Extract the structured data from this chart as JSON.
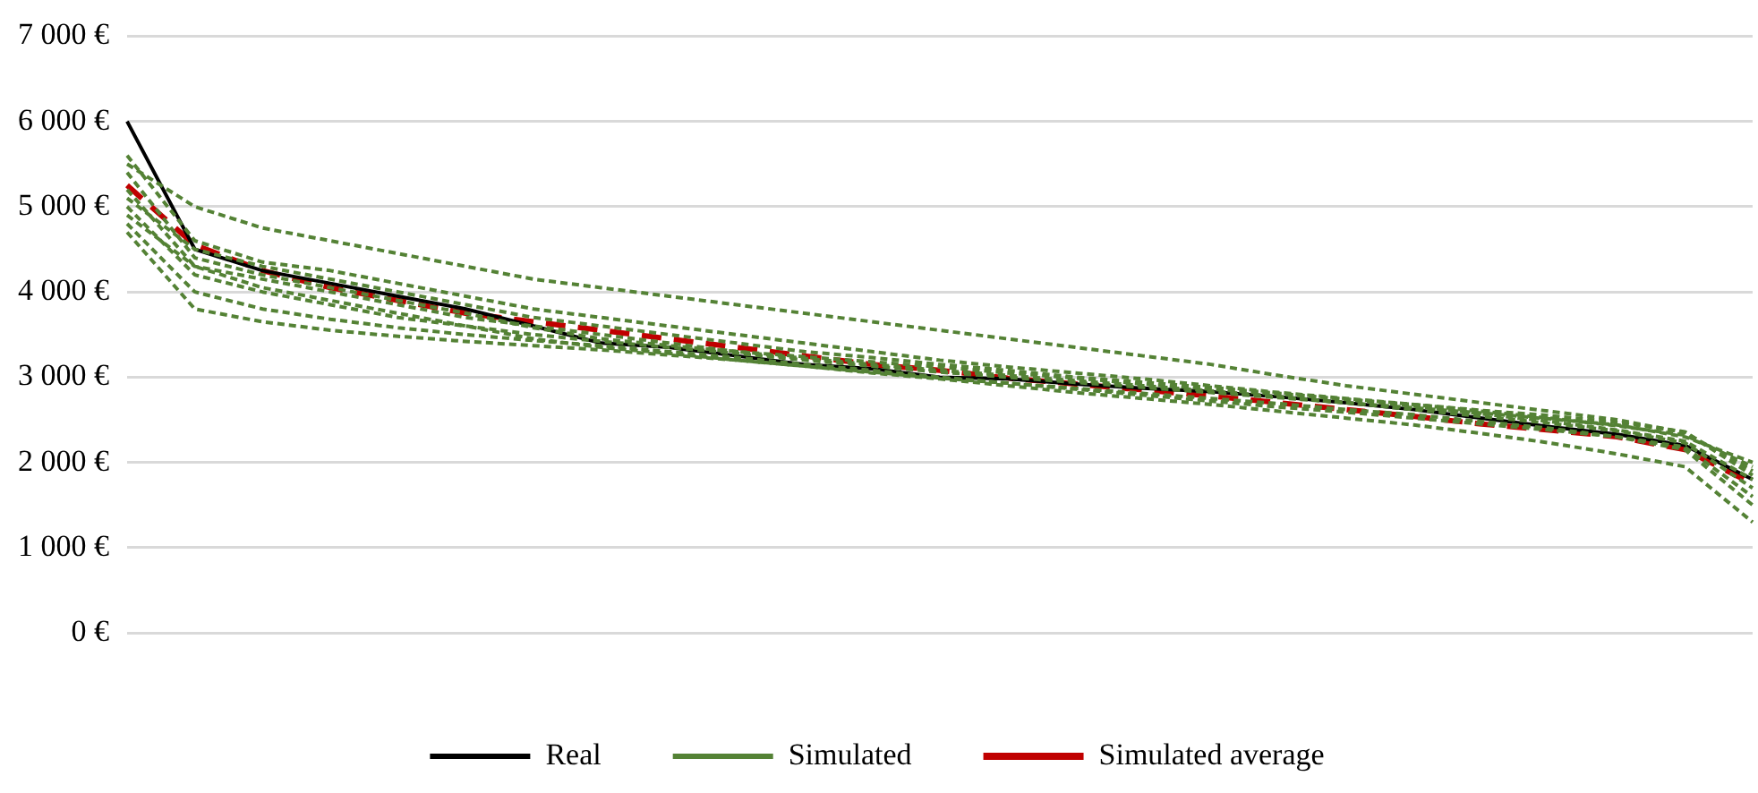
{
  "chart_data": {
    "type": "line",
    "categories": [
      null,
      null,
      null,
      null,
      null,
      null,
      null,
      null,
      null,
      null,
      null,
      null,
      null,
      null,
      null,
      null,
      null,
      null,
      null,
      null,
      null,
      null,
      null,
      null,
      null
    ],
    "series": [
      {
        "name": "Simulated",
        "color": "#548235",
        "line_style": "dotted",
        "values": [
          5500,
          5000,
          4750,
          4600,
          4450,
          4300,
          4150,
          4050,
          3950,
          3850,
          3750,
          3650,
          3550,
          3450,
          3350,
          3250,
          3150,
          3020,
          2900,
          2800,
          2700,
          2600,
          2500,
          2350,
          1900
        ]
      },
      {
        "color": "#548235",
        "line_style": "dotted",
        "values": [
          5600,
          4600,
          4350,
          4250,
          4100,
          3950,
          3800,
          3700,
          3600,
          3500,
          3400,
          3300,
          3200,
          3120,
          3050,
          2980,
          2900,
          2820,
          2750,
          2680,
          2600,
          2520,
          2430,
          2320,
          1950
        ]
      },
      {
        "color": "#548235",
        "line_style": "dotted",
        "values": [
          5100,
          4500,
          4300,
          4150,
          4000,
          3850,
          3700,
          3600,
          3500,
          3400,
          3300,
          3230,
          3150,
          3080,
          3000,
          2940,
          2880,
          2810,
          2740,
          2660,
          2570,
          2480,
          2380,
          2250,
          1800
        ]
      },
      {
        "color": "#548235",
        "line_style": "dotted",
        "values": [
          4900,
          4300,
          4150,
          4000,
          3850,
          3700,
          3600,
          3500,
          3400,
          3300,
          3220,
          3150,
          3080,
          3020,
          2960,
          2900,
          2840,
          2770,
          2700,
          2620,
          2540,
          2460,
          2370,
          2230,
          1700
        ]
      },
      {
        "color": "#548235",
        "line_style": "dotted",
        "values": [
          5000,
          4200,
          4000,
          3850,
          3700,
          3600,
          3500,
          3420,
          3350,
          3280,
          3200,
          3130,
          3060,
          3000,
          2940,
          2880,
          2820,
          2760,
          2700,
          2640,
          2580,
          2510,
          2440,
          2300,
          2000
        ]
      },
      {
        "color": "#548235",
        "line_style": "dotted",
        "values": [
          4800,
          4000,
          3800,
          3680,
          3580,
          3500,
          3430,
          3370,
          3300,
          3230,
          3150,
          3080,
          3000,
          2930,
          2860,
          2790,
          2720,
          2650,
          2590,
          2520,
          2450,
          2380,
          2300,
          2150,
          1500
        ]
      },
      {
        "color": "#548235",
        "line_style": "dotted",
        "values": [
          4700,
          3800,
          3650,
          3550,
          3480,
          3420,
          3370,
          3320,
          3260,
          3200,
          3130,
          3050,
          2980,
          2900,
          2820,
          2750,
          2680,
          2600,
          2520,
          2440,
          2340,
          2230,
          2100,
          1950,
          1300
        ]
      },
      {
        "color": "#548235",
        "line_style": "dotted",
        "values": [
          5200,
          4300,
          4050,
          3900,
          3750,
          3600,
          3450,
          3350,
          3280,
          3200,
          3130,
          3060,
          2990,
          2930,
          2870,
          2810,
          2750,
          2690,
          2620,
          2560,
          2480,
          2400,
          2300,
          2180,
          1600
        ]
      },
      {
        "color": "#548235",
        "line_style": "dotted",
        "values": [
          5400,
          4400,
          4200,
          4050,
          3900,
          3750,
          3580,
          3450,
          3370,
          3300,
          3240,
          3180,
          3120,
          3050,
          2990,
          2920,
          2860,
          2800,
          2740,
          2680,
          2610,
          2550,
          2470,
          2360,
          1850
        ]
      },
      {
        "name": "Real",
        "color": "#000000",
        "line_style": "solid",
        "values": [
          6000,
          4500,
          4250,
          4100,
          3950,
          3800,
          3600,
          3400,
          3350,
          3250,
          3150,
          3100,
          3000,
          2980,
          2920,
          2870,
          2830,
          2770,
          2700,
          2620,
          2520,
          2420,
          2330,
          2200,
          1800
        ]
      },
      {
        "name": "Simulated average",
        "color": "#c00000",
        "line_style": "dashed",
        "values": [
          5250,
          4550,
          4250,
          4050,
          3900,
          3750,
          3650,
          3550,
          3450,
          3350,
          3250,
          3150,
          3080,
          2990,
          2920,
          2850,
          2780,
          2700,
          2620,
          2540,
          2450,
          2380,
          2300,
          2150,
          1750
        ]
      }
    ],
    "ylim": [
      0,
      7000
    ],
    "yticks": [
      {
        "value": 0,
        "label": "0 €"
      },
      {
        "value": 1000,
        "label": "1 000 €"
      },
      {
        "value": 2000,
        "label": "2 000 €"
      },
      {
        "value": 3000,
        "label": "3 000 €"
      },
      {
        "value": 4000,
        "label": "4 000 €"
      },
      {
        "value": 5000,
        "label": "5 000 €"
      },
      {
        "value": 6000,
        "label": "6 000 €"
      },
      {
        "value": 7000,
        "label": "7 000 €"
      }
    ],
    "grid": "y",
    "legend": "bottom",
    "marker": "none"
  }
}
